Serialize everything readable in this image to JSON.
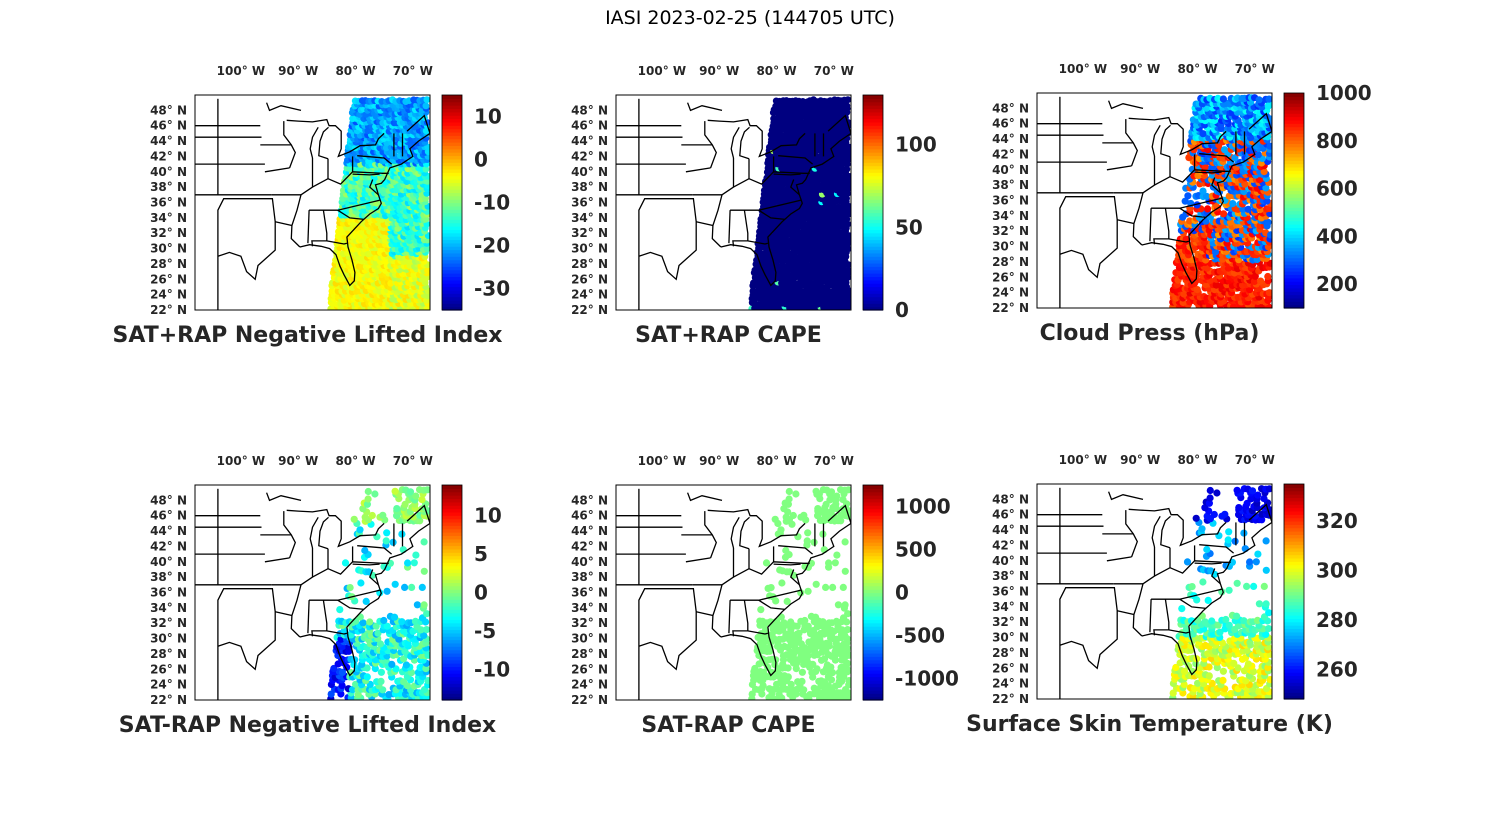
{
  "figure": {
    "title": "IASI 2023-02-25 (144705 UTC)"
  },
  "axes": {
    "lon_labels": [
      "100° W",
      "90° W",
      "80° W",
      "70° W"
    ],
    "lon_values": [
      -100,
      -90,
      -80,
      -70
    ],
    "lat_labels": [
      "48° N",
      "46° N",
      "44° N",
      "42° N",
      "40° N",
      "38° N",
      "36° N",
      "34° N",
      "32° N",
      "30° N",
      "28° N",
      "26° N",
      "24° N",
      "22° N"
    ],
    "lat_values": [
      48,
      46,
      44,
      42,
      40,
      38,
      36,
      34,
      32,
      30,
      28,
      26,
      24,
      22
    ],
    "xlim": [
      -108,
      -67
    ],
    "ylim": [
      22,
      50
    ]
  },
  "colormap": "jet",
  "chart_data": [
    {
      "type": "scatter",
      "title": "SAT+RAP Negative Lifted Index",
      "colorbar": {
        "ticks": [
          10,
          0,
          -10,
          -20,
          -30
        ],
        "tick_labels": [
          "10",
          "0",
          "-10",
          "-20",
          "-30"
        ],
        "clim": [
          -35,
          15
        ]
      },
      "field": "swath_full",
      "data_summary": "dense swath east of ~85°W: values about -25 to -15 in north/ocean, about -5 over southeastern US"
    },
    {
      "type": "scatter",
      "title": "SAT+RAP CAPE",
      "colorbar": {
        "ticks": [
          100,
          50,
          0
        ],
        "tick_labels": [
          "100",
          "50",
          "0"
        ],
        "clim": [
          0,
          130
        ]
      },
      "field": "swath_full",
      "data_summary": "dense swath east of ~85°W, nearly all 0, a few small points up to ~60 near Florida and offshore"
    },
    {
      "type": "scatter",
      "title": "Cloud Press (hPa)",
      "colorbar": {
        "ticks": [
          1000,
          800,
          600,
          400,
          200
        ],
        "tick_labels": [
          "1000",
          "800",
          "600",
          "400",
          "200"
        ],
        "clim": [
          100,
          1000
        ]
      },
      "field": "swath_cloudy",
      "data_summary": "cloudy footprints east of ~83°W: 200-400 hPa over northeast and mid-latitudes, 800-900 hPa south of 28°N"
    },
    {
      "type": "scatter",
      "title": "SAT-RAP Negative Lifted Index",
      "colorbar": {
        "ticks": [
          10,
          5,
          0,
          -5,
          -10
        ],
        "tick_labels": [
          "10",
          "5",
          "0",
          "-5",
          "-10"
        ],
        "clim": [
          -14,
          14
        ]
      },
      "field": "swath_sparse",
      "data_summary": "sparse footprints: mostly -5 to 0, down to about -12 near 24-30°N 85°W"
    },
    {
      "type": "scatter",
      "title": "SAT-RAP CAPE",
      "colorbar": {
        "ticks": [
          1000,
          500,
          0,
          -500,
          -1000
        ],
        "tick_labels": [
          "1000",
          "500",
          "0",
          "-500",
          "-1000"
        ],
        "clim": [
          -1250,
          1250
        ]
      },
      "field": "swath_sparse",
      "data_summary": "sparse footprints, essentially all about 0"
    },
    {
      "type": "scatter",
      "title": "Surface Skin Temperature (K)",
      "colorbar": {
        "ticks": [
          320,
          300,
          280,
          260
        ],
        "tick_labels": [
          "320",
          "300",
          "280",
          "260"
        ],
        "clim": [
          248,
          335
        ]
      },
      "field": "swath_sparse",
      "data_summary": "sparse footprints: about 255 K in far northeast, 270-280 K mid-latitudes, 290-305 K over Florida and south"
    }
  ]
}
